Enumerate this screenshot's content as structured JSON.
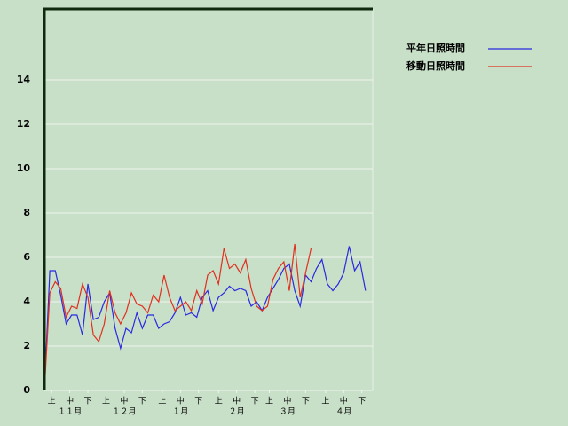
{
  "chart_data": {
    "type": "line",
    "x": [
      0,
      3,
      6,
      9,
      12,
      15,
      18,
      21,
      24,
      27,
      30,
      33,
      36,
      39,
      42,
      45,
      48,
      51,
      54,
      57,
      60,
      63,
      66,
      69,
      72,
      75,
      78,
      81,
      84,
      87,
      90,
      93,
      96,
      99,
      102,
      105,
      108,
      111,
      114,
      117,
      120,
      123,
      126,
      129,
      132,
      135,
      138,
      141,
      144,
      147,
      150,
      153,
      156,
      159,
      162,
      165,
      168,
      171,
      174,
      177
    ],
    "xlim": [
      0,
      181
    ],
    "xticks": [
      {
        "value": 4,
        "label": "上"
      },
      {
        "value": 14,
        "label": "中"
      },
      {
        "value": 24,
        "label": "下"
      },
      {
        "value": 34,
        "label": "上"
      },
      {
        "value": 44,
        "label": "中"
      },
      {
        "value": 54,
        "label": "下"
      },
      {
        "value": 65,
        "label": "上"
      },
      {
        "value": 75,
        "label": "中"
      },
      {
        "value": 85,
        "label": "下"
      },
      {
        "value": 96,
        "label": "上"
      },
      {
        "value": 106,
        "label": "中"
      },
      {
        "value": 116,
        "label": "下"
      },
      {
        "value": 124,
        "label": "上"
      },
      {
        "value": 134,
        "label": "中"
      },
      {
        "value": 144,
        "label": "下"
      },
      {
        "value": 155,
        "label": "上"
      },
      {
        "value": 165,
        "label": "中"
      },
      {
        "value": 175,
        "label": "下"
      }
    ],
    "month_labels": [
      {
        "value": 14,
        "label": "１１月"
      },
      {
        "value": 44,
        "label": "１２月"
      },
      {
        "value": 75,
        "label": "１月"
      },
      {
        "value": 106,
        "label": "２月"
      },
      {
        "value": 134,
        "label": "３月"
      },
      {
        "value": 165,
        "label": "４月"
      }
    ],
    "ylim": [
      0,
      17.2
    ],
    "yticks": [
      0,
      2,
      4,
      6,
      8,
      10,
      12,
      14
    ],
    "grid": true,
    "series": [
      {
        "name": "平年日照時間",
        "color": "#2a2ae0",
        "values": [
          0,
          5.4,
          5.4,
          4.3,
          3.0,
          3.4,
          3.4,
          2.5,
          4.8,
          3.2,
          3.3,
          4.0,
          4.4,
          2.8,
          1.9,
          2.8,
          2.6,
          3.5,
          2.8,
          3.4,
          3.4,
          2.8,
          3.0,
          3.1,
          3.5,
          4.2,
          3.4,
          3.5,
          3.3,
          4.2,
          4.5,
          3.6,
          4.2,
          4.4,
          4.7,
          4.5,
          4.6,
          4.5,
          3.8,
          4.0,
          3.6,
          4.2,
          4.6,
          5.0,
          5.5,
          5.7,
          4.5,
          3.8,
          5.2,
          4.9,
          5.5,
          5.9,
          4.8,
          4.5,
          4.8,
          5.3,
          6.5,
          5.4,
          5.8,
          4.5
        ]
      },
      {
        "name": "移動日照時間",
        "color": "#e03020",
        "values": [
          0,
          4.4,
          4.9,
          4.6,
          3.3,
          3.8,
          3.7,
          4.8,
          4.2,
          2.5,
          2.2,
          3.0,
          4.5,
          3.5,
          3.0,
          3.5,
          4.4,
          3.9,
          3.8,
          3.5,
          4.3,
          4.0,
          5.2,
          4.2,
          3.6,
          3.8,
          4.0,
          3.6,
          4.5,
          3.9,
          5.2,
          5.4,
          4.8,
          6.4,
          5.5,
          5.7,
          5.3,
          5.9,
          4.6,
          3.8,
          3.6,
          3.8,
          5.0,
          5.5,
          5.8,
          4.5,
          6.6,
          4.2,
          5.3,
          6.4,
          null,
          null,
          null,
          null,
          null,
          null,
          null,
          null,
          null,
          null
        ]
      }
    ]
  }
}
